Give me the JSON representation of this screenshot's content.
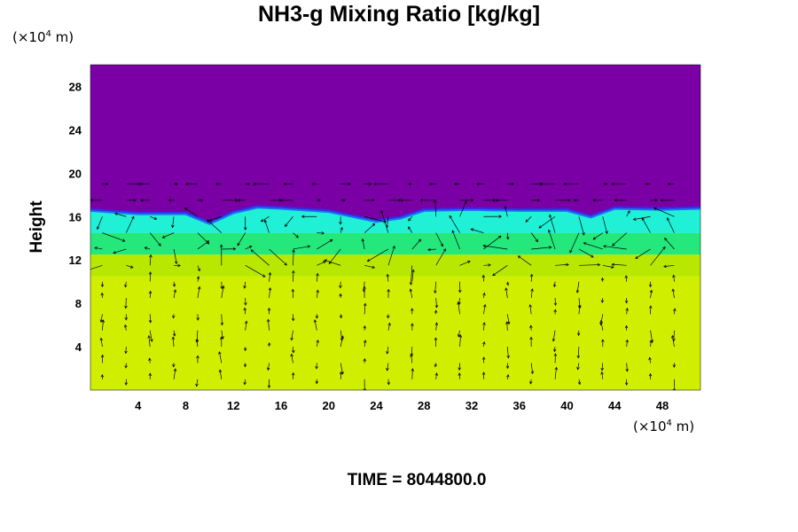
{
  "chart_data": {
    "type": "heatmap",
    "title": "NH3-g Mixing Ratio [kg/kg]",
    "ylabel": "Height",
    "x_unit_prefix": "(×10",
    "x_unit_exp": "4",
    "x_unit_suffix": " m)",
    "y_unit_prefix": "(×10",
    "y_unit_exp": "4",
    "y_unit_suffix": " m)",
    "xlim": [
      0,
      51.2
    ],
    "ylim": [
      0,
      30
    ],
    "xticks": [
      4,
      8,
      12,
      16,
      20,
      24,
      28,
      32,
      36,
      40,
      44,
      48
    ],
    "yticks": [
      4,
      8,
      12,
      16,
      20,
      24,
      28
    ],
    "layers": [
      {
        "name": "lower-uniform",
        "y_from": 0,
        "y_to": 10.5,
        "color": "#d0ee00"
      },
      {
        "name": "cloud-base",
        "y_from": 10.5,
        "y_to": 12.5,
        "color": "#b8e800"
      },
      {
        "name": "cloud-mid",
        "y_from": 12.5,
        "y_to": 14.5,
        "color": "#24e87c"
      },
      {
        "name": "cloud-upper",
        "y_from": 14.5,
        "y_to": 16.5,
        "color": "#20f0d6"
      },
      {
        "name": "upper-dry",
        "y_from": 16.5,
        "y_to": 30,
        "color": "#7a00a6"
      }
    ],
    "top_boundary": [
      [
        0,
        16.6
      ],
      [
        4,
        16.3
      ],
      [
        8,
        16.3
      ],
      [
        10,
        15.4
      ],
      [
        12,
        16.4
      ],
      [
        14,
        16.9
      ],
      [
        16,
        16.8
      ],
      [
        20,
        16.5
      ],
      [
        24,
        15.6
      ],
      [
        26,
        15.9
      ],
      [
        28,
        16.6
      ],
      [
        32,
        16.7
      ],
      [
        36,
        16.6
      ],
      [
        40,
        16.6
      ],
      [
        42,
        16.0
      ],
      [
        44,
        16.8
      ],
      [
        48,
        16.7
      ],
      [
        51.2,
        16.8
      ]
    ],
    "vectors": "wind vector field overlay (arrows)"
  },
  "footer": {
    "time_label": "TIME = 8044800.0"
  }
}
